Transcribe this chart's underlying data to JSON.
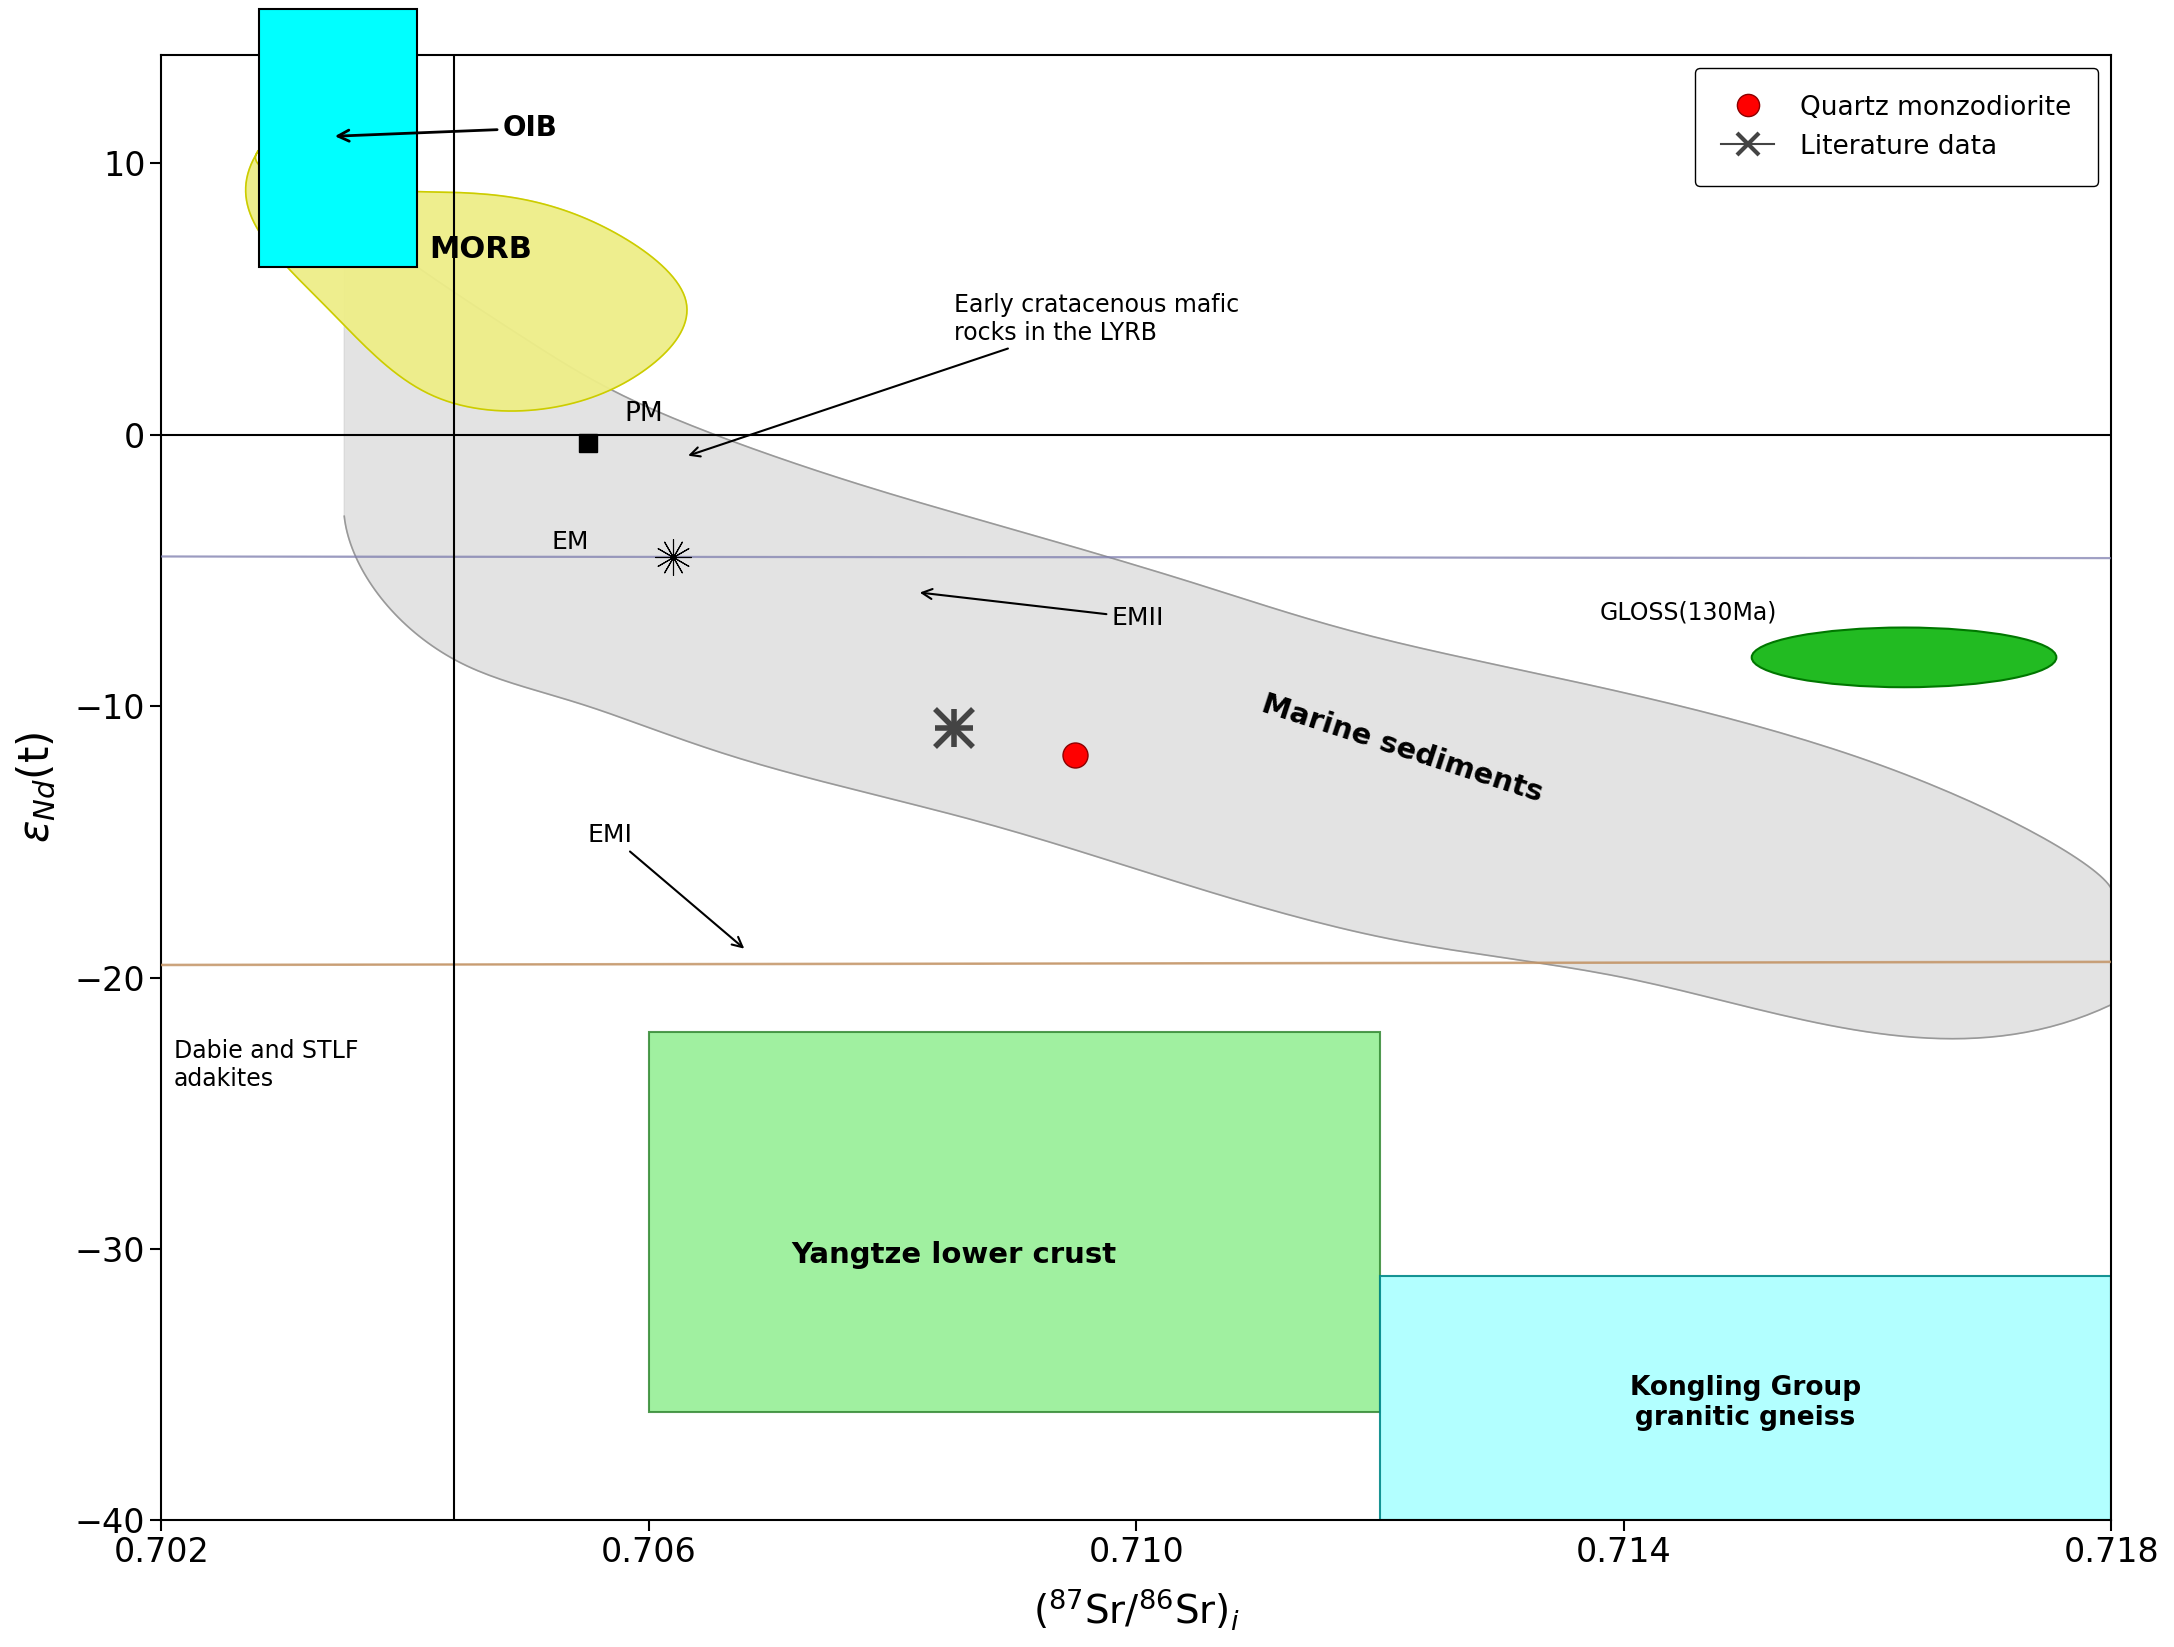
{
  "xlim": [
    0.702,
    0.718
  ],
  "ylim": [
    -40,
    14
  ],
  "xticks": [
    0.702,
    0.706,
    0.71,
    0.714,
    0.718
  ],
  "yticks": [
    -40,
    -30,
    -20,
    -10,
    0,
    10
  ],
  "background": "#FFFFFF",
  "marine_sed_color": "#CCCCCC",
  "morb_color": "#EEEE88",
  "emi_color": "#D4A882",
  "emii_color": "#AAAACC",
  "gloss_color": "#22BB22",
  "oib_color": "#00FFFF",
  "yangtze_color": "#90EE90",
  "kongling_color": "#AAFFFF"
}
